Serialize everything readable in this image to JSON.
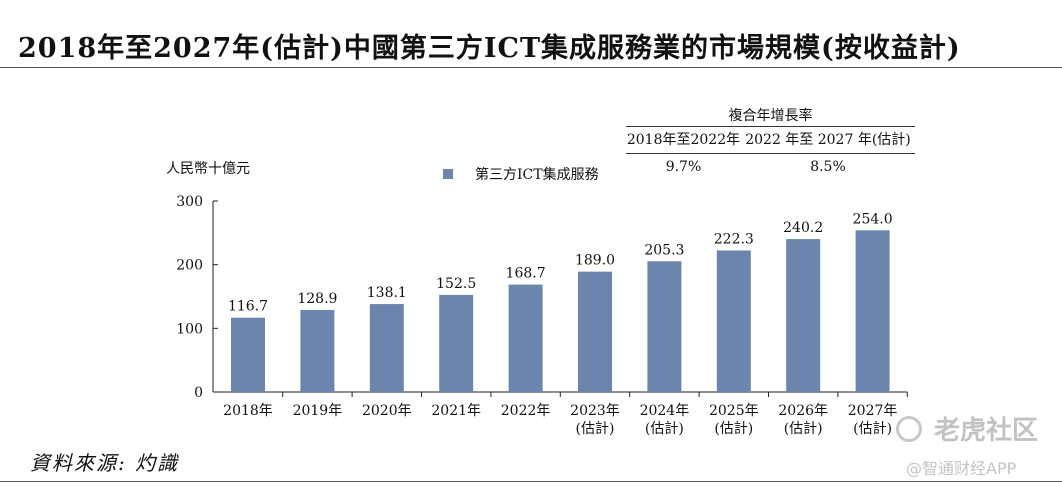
{
  "title": "2018年至2027年(估計)中國第三方ICT集成服務業的市場規模(按收益計)",
  "source": "資料來源: 灼識",
  "watermarks": {
    "primary": "老虎社区",
    "secondary": "@智通财经APP"
  },
  "cagr_table": {
    "header": "複合年增長率",
    "periods": [
      "2018年至2022年",
      "2022 年至 2027 年(估計)"
    ],
    "values": [
      "9.7%",
      "8.5%"
    ]
  },
  "colors": {
    "bar": "#6b85ad",
    "axis": "#222222"
  },
  "chart_data": {
    "type": "bar",
    "title": "2018年至2027年(估計)中國第三方ICT集成服務業的市場規模(按收益計)",
    "ylabel": "人民幣十億元",
    "xlabel": "",
    "legend": "第三方ICT集成服務",
    "legend_position": "top",
    "ylim": [
      0,
      300
    ],
    "yticks": [
      0,
      100,
      200,
      300
    ],
    "grid": false,
    "categories": [
      [
        "2018年"
      ],
      [
        "2019年"
      ],
      [
        "2020年"
      ],
      [
        "2021年"
      ],
      [
        "2022年"
      ],
      [
        "2023年",
        "(估計)"
      ],
      [
        "2024年",
        "(估計)"
      ],
      [
        "2025年",
        "(估計)"
      ],
      [
        "2026年",
        "(估計)"
      ],
      [
        "2027年",
        "(估計)"
      ]
    ],
    "series": [
      {
        "name": "第三方ICT集成服務",
        "values": [
          116.7,
          128.9,
          138.1,
          152.5,
          168.7,
          189.0,
          205.3,
          222.3,
          240.2,
          254.0
        ],
        "labels": [
          "116.7",
          "128.9",
          "138.1",
          "152.5",
          "168.7",
          "189.0",
          "205.3",
          "222.3",
          "240.2",
          "254.0"
        ]
      }
    ]
  }
}
